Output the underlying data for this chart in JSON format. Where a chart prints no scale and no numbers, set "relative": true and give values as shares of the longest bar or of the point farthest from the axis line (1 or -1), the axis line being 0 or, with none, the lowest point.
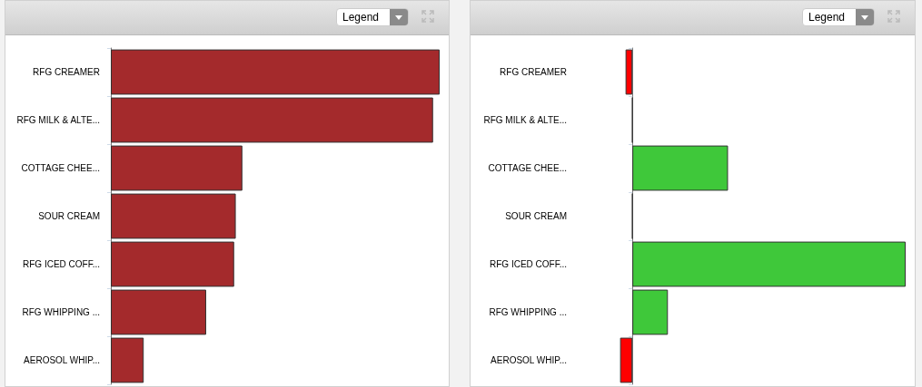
{
  "chart_data": [
    {
      "type": "bar",
      "orientation": "horizontal",
      "relative": true,
      "categories": [
        "RFG CREAMER",
        "RFG MILK & ALTE...",
        "COTTAGE CHEE...",
        "SOUR CREAM",
        "RFG ICED COFF...",
        "RFG WHIPPING ...",
        "AEROSOL WHIP..."
      ],
      "values": [
        1,
        0.98,
        0.4,
        0.38,
        0.375,
        0.29,
        0.1
      ],
      "color": "#a42a2c",
      "annotations": [
        "Legend"
      ]
    },
    {
      "type": "bar",
      "orientation": "horizontal",
      "relative": true,
      "categories": [
        "RFG CREAMER",
        "RFG MILK & ALTE...",
        "COTTAGE CHEE...",
        "SOUR CREAM",
        "RFG ICED COFF...",
        "RFG WHIPPING ...",
        "AEROSOL WHIP..."
      ],
      "values": [
        -0.025,
        0,
        0.35,
        0,
        1,
        0.13,
        -0.045
      ],
      "colors": [
        "#ff0000",
        "#333333",
        "#3fc83a",
        "#333333",
        "#3fc83a",
        "#3fc83a",
        "#ff0000"
      ],
      "annotations": [
        "Legend"
      ]
    }
  ]
}
